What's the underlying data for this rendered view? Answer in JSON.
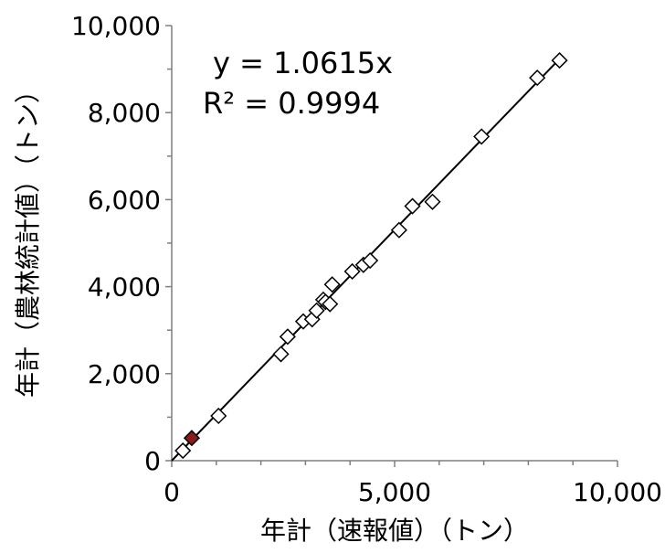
{
  "chart_data": {
    "type": "scatter",
    "xlabel": "年計（速報値）（トン）",
    "ylabel": "年計（農林統計値）（トン）",
    "xlim": [
      0,
      10000
    ],
    "ylim": [
      0,
      10000
    ],
    "x_ticks": [
      0,
      5000,
      10000
    ],
    "x_tick_labels": [
      "0",
      "5,000",
      "10,000"
    ],
    "y_ticks": [
      0,
      2000,
      4000,
      6000,
      8000,
      10000
    ],
    "y_tick_labels": [
      "0",
      "2,000",
      "4,000",
      "6,000",
      "8,000",
      "10,000"
    ],
    "grid": false,
    "marker": "diamond",
    "marker_color": "#ffffff",
    "highlight_color": "#8b1a1a",
    "series": [
      {
        "points": [
          [
            250,
            230
          ],
          [
            1050,
            1030
          ],
          [
            2450,
            2450
          ],
          [
            2600,
            2850
          ],
          [
            2950,
            3200
          ],
          [
            3150,
            3250
          ],
          [
            3250,
            3450
          ],
          [
            3400,
            3700
          ],
          [
            3450,
            3650
          ],
          [
            3550,
            3600
          ],
          [
            3600,
            4050
          ],
          [
            4050,
            4350
          ],
          [
            4300,
            4500
          ],
          [
            4450,
            4600
          ],
          [
            5100,
            5300
          ],
          [
            5400,
            5850
          ],
          [
            5850,
            5950
          ],
          [
            6950,
            7450
          ],
          [
            8200,
            8800
          ],
          [
            8700,
            9200
          ]
        ]
      },
      {
        "highlight": true,
        "points": [
          [
            450,
            520
          ]
        ]
      }
    ],
    "trendline": {
      "slope": 1.0615,
      "x_range": [
        0,
        8750
      ],
      "equation_label": "y = 1.0615x",
      "r2_label": "R² = 0.9994"
    }
  }
}
